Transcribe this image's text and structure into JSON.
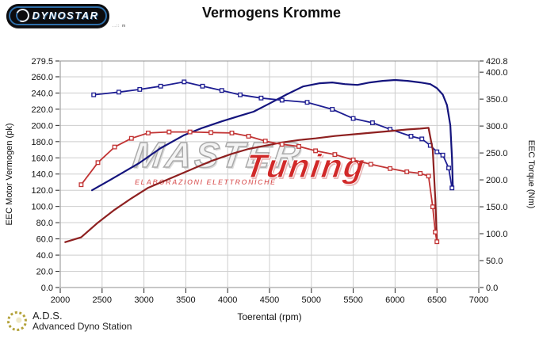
{
  "header": {
    "logo_text": "DYNOSTAR",
    "logo_fine_print": "..:: m",
    "title": "Vermogens Kromme"
  },
  "watermark": {
    "word_gray": "MASTER",
    "word_red": "Tuning",
    "subtitle": "ELABORAZIONI ELETTRONICHE",
    "gray_color": "#a3a3a3",
    "red_color": "#ce1717"
  },
  "footer": {
    "abbr": "A.D.S.",
    "name": "Advanced Dyno Station",
    "logo_color": "#b3a23a"
  },
  "chart_data": {
    "type": "line",
    "title": "Vermogens Kromme",
    "xlabel": "Toerental (rpm)",
    "ylabel_left": "EEC Motor Vermogen (pk)",
    "ylabel_right": "EEC Torque (Nm)",
    "grid": true,
    "xlim": [
      2000,
      7000
    ],
    "x_ticks": [
      2000,
      2500,
      3000,
      3500,
      4000,
      4500,
      5000,
      5500,
      6000,
      6500,
      7000
    ],
    "ylim_left": [
      0,
      279.5
    ],
    "y_ticks_left": [
      279.5,
      260.0,
      240.0,
      220.0,
      200.0,
      180.0,
      160.0,
      140.0,
      120.0,
      100.0,
      80.0,
      60.0,
      40.0,
      20.0,
      0.0
    ],
    "ylim_right": [
      0,
      420.8
    ],
    "y_ticks_right": [
      420.8,
      400.0,
      350.0,
      300.0,
      250.0,
      200.0,
      150.0,
      100.0,
      50.0,
      0.0
    ],
    "series": [
      {
        "name": "vermogen-tuned-navy",
        "axis": "left",
        "unit": "pk",
        "color": "#14147d",
        "marker": false,
        "width": 2.2,
        "points": [
          [
            2380,
            120
          ],
          [
            2600,
            133
          ],
          [
            2950,
            154
          ],
          [
            3200,
            172
          ],
          [
            3480,
            188
          ],
          [
            3700,
            197
          ],
          [
            3930,
            205
          ],
          [
            4150,
            212
          ],
          [
            4310,
            217
          ],
          [
            4500,
            227
          ],
          [
            4700,
            238
          ],
          [
            4900,
            248
          ],
          [
            5100,
            252
          ],
          [
            5250,
            253
          ],
          [
            5400,
            251
          ],
          [
            5550,
            250
          ],
          [
            5700,
            253
          ],
          [
            5850,
            255
          ],
          [
            6000,
            256
          ],
          [
            6150,
            255
          ],
          [
            6300,
            253
          ],
          [
            6420,
            251
          ],
          [
            6500,
            246
          ],
          [
            6570,
            238
          ],
          [
            6620,
            225
          ],
          [
            6660,
            200
          ],
          [
            6680,
            160
          ],
          [
            6690,
            122
          ]
        ]
      },
      {
        "name": "torque-tuned-navy",
        "axis": "right",
        "unit": "Nm",
        "color": "#1d1d92",
        "marker": true,
        "width": 1.8,
        "points": [
          [
            2400,
            358
          ],
          [
            2700,
            363
          ],
          [
            2950,
            368
          ],
          [
            3200,
            374
          ],
          [
            3480,
            382
          ],
          [
            3700,
            374
          ],
          [
            3930,
            366
          ],
          [
            4150,
            358
          ],
          [
            4400,
            352
          ],
          [
            4650,
            348
          ],
          [
            4950,
            344
          ],
          [
            5250,
            331
          ],
          [
            5500,
            314
          ],
          [
            5730,
            306
          ],
          [
            5940,
            294
          ],
          [
            6190,
            281
          ],
          [
            6320,
            276
          ],
          [
            6420,
            264
          ],
          [
            6500,
            252
          ],
          [
            6570,
            246
          ],
          [
            6640,
            222
          ],
          [
            6680,
            185
          ]
        ]
      },
      {
        "name": "vermogen-original-red",
        "axis": "left",
        "unit": "pk",
        "color": "#8e2020",
        "marker": false,
        "width": 2.2,
        "points": [
          [
            2060,
            56
          ],
          [
            2250,
            62
          ],
          [
            2450,
            80
          ],
          [
            2650,
            96
          ],
          [
            2850,
            110
          ],
          [
            3050,
            123
          ],
          [
            3300,
            134
          ],
          [
            3550,
            145
          ],
          [
            3800,
            156
          ],
          [
            4050,
            165
          ],
          [
            4250,
            171
          ],
          [
            4450,
            175
          ],
          [
            4650,
            179
          ],
          [
            4850,
            182
          ],
          [
            5050,
            184
          ],
          [
            5280,
            187
          ],
          [
            5500,
            189
          ],
          [
            5710,
            191
          ],
          [
            5940,
            193
          ],
          [
            6140,
            195
          ],
          [
            6300,
            196
          ],
          [
            6400,
            197
          ],
          [
            6450,
            170
          ],
          [
            6480,
            110
          ],
          [
            6500,
            57
          ]
        ]
      },
      {
        "name": "torque-original-red",
        "axis": "right",
        "unit": "Nm",
        "color": "#c23434",
        "marker": true,
        "width": 1.8,
        "points": [
          [
            2250,
            191
          ],
          [
            2450,
            232
          ],
          [
            2650,
            261
          ],
          [
            2850,
            277
          ],
          [
            3050,
            287
          ],
          [
            3300,
            289
          ],
          [
            3550,
            289
          ],
          [
            3800,
            288
          ],
          [
            4050,
            287
          ],
          [
            4250,
            281
          ],
          [
            4450,
            272
          ],
          [
            4650,
            266
          ],
          [
            4850,
            262
          ],
          [
            5050,
            254
          ],
          [
            5280,
            247
          ],
          [
            5500,
            237
          ],
          [
            5710,
            229
          ],
          [
            5940,
            221
          ],
          [
            6140,
            215
          ],
          [
            6300,
            212
          ],
          [
            6400,
            207
          ],
          [
            6450,
            150
          ],
          [
            6480,
            103
          ],
          [
            6500,
            85
          ]
        ]
      }
    ]
  }
}
